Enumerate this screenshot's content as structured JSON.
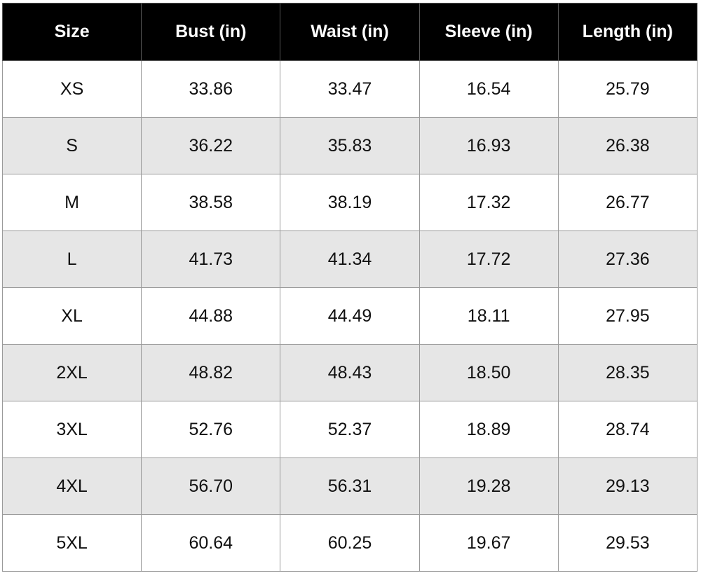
{
  "table": {
    "header": [
      "Size",
      "Bust (in)",
      "Waist (in)",
      "Sleeve (in)",
      "Length (in)"
    ],
    "rows": [
      [
        "XS",
        "33.86",
        "33.47",
        "16.54",
        "25.79"
      ],
      [
        "S",
        "36.22",
        "35.83",
        "16.93",
        "26.38"
      ],
      [
        "M",
        "38.58",
        "38.19",
        "17.32",
        "26.77"
      ],
      [
        "L",
        "41.73",
        "41.34",
        "17.72",
        "27.36"
      ],
      [
        "XL",
        "44.88",
        "44.49",
        "18.11",
        "27.95"
      ],
      [
        "2XL",
        "48.82",
        "48.43",
        "18.50",
        "28.35"
      ],
      [
        "3XL",
        "52.76",
        "52.37",
        "18.89",
        "28.74"
      ],
      [
        "4XL",
        "56.70",
        "56.31",
        "19.28",
        "29.13"
      ],
      [
        "5XL",
        "60.64",
        "60.25",
        "19.67",
        "29.53"
      ]
    ]
  }
}
